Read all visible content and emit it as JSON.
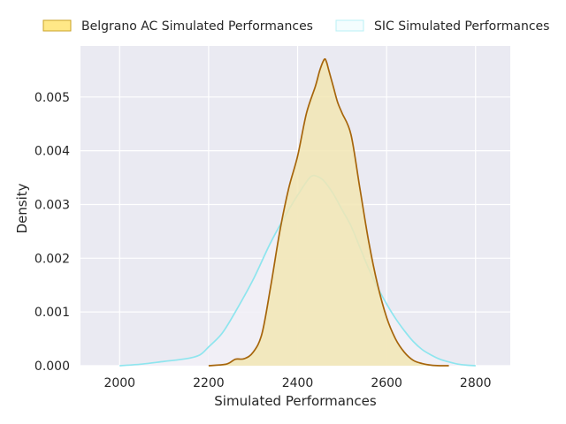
{
  "chart_data": {
    "type": "area",
    "xlabel": "Simulated Performances",
    "ylabel": "Density",
    "xlim": [
      1912,
      2878
    ],
    "ylim": [
      0,
      0.00595
    ],
    "x_ticks": [
      "2000",
      "2200",
      "2400",
      "2600",
      "2800"
    ],
    "x_tick_values": [
      2000,
      2200,
      2400,
      2600,
      2800
    ],
    "y_ticks": [
      "0.000",
      "0.001",
      "0.002",
      "0.003",
      "0.004",
      "0.005"
    ],
    "y_tick_values": [
      0,
      0.001,
      0.002,
      0.003,
      0.004,
      0.005
    ],
    "grid": true,
    "legend_position": "top",
    "series": [
      {
        "name": "SIC Simulated Performances",
        "fill": "#F2F0F7",
        "stroke": "#8EE5EE",
        "x": [
          2000,
          2050,
          2100,
          2150,
          2180,
          2200,
          2230,
          2260,
          2300,
          2340,
          2380,
          2410,
          2430,
          2445,
          2460,
          2480,
          2500,
          2520,
          2540,
          2560,
          2580,
          2600,
          2620,
          2640,
          2660,
          2680,
          2700,
          2720,
          2740,
          2760,
          2780,
          2800
        ],
        "y": [
          0.0,
          3e-05,
          8e-05,
          0.00013,
          0.0002,
          0.00035,
          0.0006,
          0.001,
          0.0016,
          0.0023,
          0.0029,
          0.0033,
          0.00352,
          0.00352,
          0.00343,
          0.0032,
          0.0029,
          0.0026,
          0.0022,
          0.0018,
          0.00145,
          0.00115,
          0.00088,
          0.00065,
          0.00045,
          0.0003,
          0.0002,
          0.00012,
          7e-05,
          3e-05,
          1e-05,
          0.0
        ]
      },
      {
        "name": "Belgrano AC Simulated Performances",
        "fill": "#F2E6B4",
        "stroke": "#A6650B",
        "x": [
          2200,
          2240,
          2260,
          2280,
          2300,
          2320,
          2340,
          2360,
          2380,
          2400,
          2420,
          2440,
          2450,
          2460,
          2465,
          2470,
          2480,
          2490,
          2500,
          2520,
          2540,
          2560,
          2580,
          2600,
          2620,
          2640,
          2660,
          2680,
          2700,
          2720,
          2740
        ],
        "y": [
          0.0,
          3e-05,
          0.00012,
          0.00013,
          0.00025,
          0.0006,
          0.0015,
          0.0025,
          0.0033,
          0.0039,
          0.0047,
          0.0052,
          0.0055,
          0.0057,
          0.00565,
          0.0055,
          0.0052,
          0.0049,
          0.0047,
          0.0043,
          0.0033,
          0.0023,
          0.0015,
          0.0009,
          0.0005,
          0.00025,
          0.0001,
          4e-05,
          1e-05,
          0.0,
          0.0
        ]
      }
    ]
  },
  "legend": [
    {
      "label": "Belgrano AC Simulated Performances",
      "fill": "#FFE887",
      "stroke": "#C9A227"
    },
    {
      "label": "SIC Simulated Performances",
      "fill": "#F4FDFE",
      "stroke": "#B8F0F5"
    }
  ],
  "colors": {
    "plot_background": "#EAEAF2",
    "grid": "#FFFFFF",
    "text": "#262626"
  }
}
